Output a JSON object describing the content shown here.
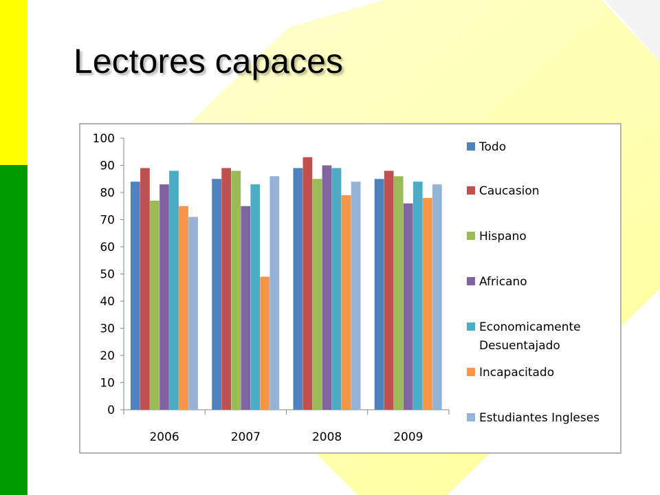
{
  "slide": {
    "title": "Lectores capaces",
    "accent_colors": {
      "top_stripe": "#ffff00",
      "bottom_stripe": "#009900",
      "background_shape": "#ffff99"
    }
  },
  "chart_data": {
    "type": "bar",
    "title": "",
    "xlabel": "",
    "ylabel": "",
    "ylim": [
      0,
      100
    ],
    "yticks": [
      0,
      10,
      20,
      30,
      40,
      50,
      60,
      70,
      80,
      90,
      100
    ],
    "grid": false,
    "legend_position": "right",
    "categories": [
      "2006",
      "2007",
      "2008",
      "2009"
    ],
    "series": [
      {
        "name": "Todo",
        "color": "#4f81bd",
        "values": [
          84,
          85,
          89,
          85
        ]
      },
      {
        "name": "Caucasion",
        "color": "#c0504d",
        "values": [
          89,
          89,
          93,
          88
        ]
      },
      {
        "name": "Hispano",
        "color": "#9bbb59",
        "values": [
          77,
          88,
          85,
          86
        ]
      },
      {
        "name": "Africano",
        "color": "#8064a2",
        "values": [
          83,
          75,
          90,
          76
        ]
      },
      {
        "name": "Economicamente Desuentajado",
        "color": "#4bacc6",
        "values": [
          88,
          83,
          89,
          84
        ]
      },
      {
        "name": "Incapacitado",
        "color": "#f79646",
        "values": [
          75,
          49,
          79,
          78
        ]
      },
      {
        "name": "Estudiantes Ingleses",
        "color": "#95b3d7",
        "values": [
          71,
          86,
          84,
          83
        ]
      }
    ]
  }
}
